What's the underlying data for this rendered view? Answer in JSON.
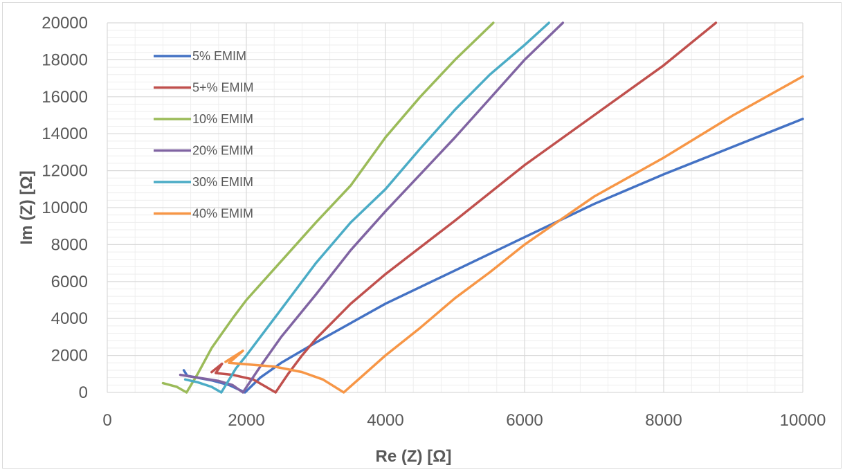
{
  "chart_data": {
    "type": "line",
    "title": "",
    "xlabel": "Re (Z) [Ω]",
    "ylabel": "Im (Z) [Ω]",
    "xlim": [
      0,
      10000
    ],
    "ylim": [
      0,
      20000
    ],
    "x_ticks": [
      "0",
      "2000",
      "4000",
      "6000",
      "8000",
      "10000"
    ],
    "y_ticks": [
      "0",
      "2000",
      "4000",
      "6000",
      "8000",
      "10000",
      "12000",
      "14000",
      "16000",
      "18000",
      "20000"
    ],
    "grid": "major and minor",
    "legend_position": "top-left",
    "series": [
      {
        "name": "5% EMIM",
        "color": "#4472c4",
        "points": [
          [
            1100,
            1200
          ],
          [
            1150,
            900
          ],
          [
            1500,
            650
          ],
          [
            1750,
            400
          ],
          [
            1980,
            0
          ],
          [
            2200,
            800
          ],
          [
            2500,
            1600
          ],
          [
            3000,
            2700
          ],
          [
            4000,
            4800
          ],
          [
            5000,
            6600
          ],
          [
            6000,
            8400
          ],
          [
            7000,
            10200
          ],
          [
            8000,
            11800
          ],
          [
            9000,
            13300
          ],
          [
            10000,
            14800
          ]
        ]
      },
      {
        "name": "5+% EMIM",
        "color": "#c0504d",
        "points": [
          [
            1500,
            1100
          ],
          [
            1650,
            1550
          ],
          [
            1560,
            1050
          ],
          [
            1800,
            950
          ],
          [
            2100,
            700
          ],
          [
            2420,
            0
          ],
          [
            2600,
            1000
          ],
          [
            2800,
            2000
          ],
          [
            3000,
            2900
          ],
          [
            3500,
            4800
          ],
          [
            4000,
            6400
          ],
          [
            5000,
            9300
          ],
          [
            6000,
            12300
          ],
          [
            7000,
            15000
          ],
          [
            8000,
            17700
          ],
          [
            8750,
            20000
          ]
        ]
      },
      {
        "name": "10% EMIM",
        "color": "#9bbb59",
        "points": [
          [
            800,
            500
          ],
          [
            1000,
            300
          ],
          [
            1140,
            0
          ],
          [
            1300,
            1000
          ],
          [
            1500,
            2400
          ],
          [
            1800,
            4000
          ],
          [
            2000,
            5000
          ],
          [
            2500,
            7100
          ],
          [
            3000,
            9200
          ],
          [
            3500,
            11200
          ],
          [
            4000,
            13800
          ],
          [
            4500,
            16000
          ],
          [
            5000,
            18000
          ],
          [
            5550,
            20000
          ]
        ]
      },
      {
        "name": "20% EMIM",
        "color": "#8064a2",
        "points": [
          [
            1050,
            950
          ],
          [
            1300,
            800
          ],
          [
            1600,
            620
          ],
          [
            1800,
            400
          ],
          [
            1950,
            0
          ],
          [
            2200,
            1400
          ],
          [
            2500,
            3000
          ],
          [
            3000,
            5300
          ],
          [
            3500,
            7700
          ],
          [
            4000,
            9800
          ],
          [
            4500,
            11800
          ],
          [
            5000,
            13800
          ],
          [
            5500,
            15900
          ],
          [
            6000,
            18000
          ],
          [
            6550,
            20000
          ]
        ]
      },
      {
        "name": "30% EMIM",
        "color": "#4bacc6",
        "points": [
          [
            1120,
            700
          ],
          [
            1300,
            550
          ],
          [
            1500,
            300
          ],
          [
            1640,
            0
          ],
          [
            1850,
            1300
          ],
          [
            2000,
            2000
          ],
          [
            2500,
            4500
          ],
          [
            3000,
            7000
          ],
          [
            3500,
            9200
          ],
          [
            4000,
            11000
          ],
          [
            4500,
            13200
          ],
          [
            5000,
            15300
          ],
          [
            5500,
            17200
          ],
          [
            6000,
            18800
          ],
          [
            6350,
            20000
          ]
        ]
      },
      {
        "name": "40% EMIM",
        "color": "#f79646",
        "points": [
          [
            1700,
            1650
          ],
          [
            1950,
            2250
          ],
          [
            1750,
            1600
          ],
          [
            2400,
            1400
          ],
          [
            2800,
            1100
          ],
          [
            3100,
            700
          ],
          [
            3400,
            0
          ],
          [
            3700,
            1000
          ],
          [
            4000,
            2000
          ],
          [
            4500,
            3500
          ],
          [
            5000,
            5100
          ],
          [
            5500,
            6500
          ],
          [
            6000,
            8000
          ],
          [
            6500,
            9300
          ],
          [
            7000,
            10600
          ],
          [
            8000,
            12700
          ],
          [
            9000,
            15000
          ],
          [
            10000,
            17100
          ]
        ]
      }
    ]
  }
}
